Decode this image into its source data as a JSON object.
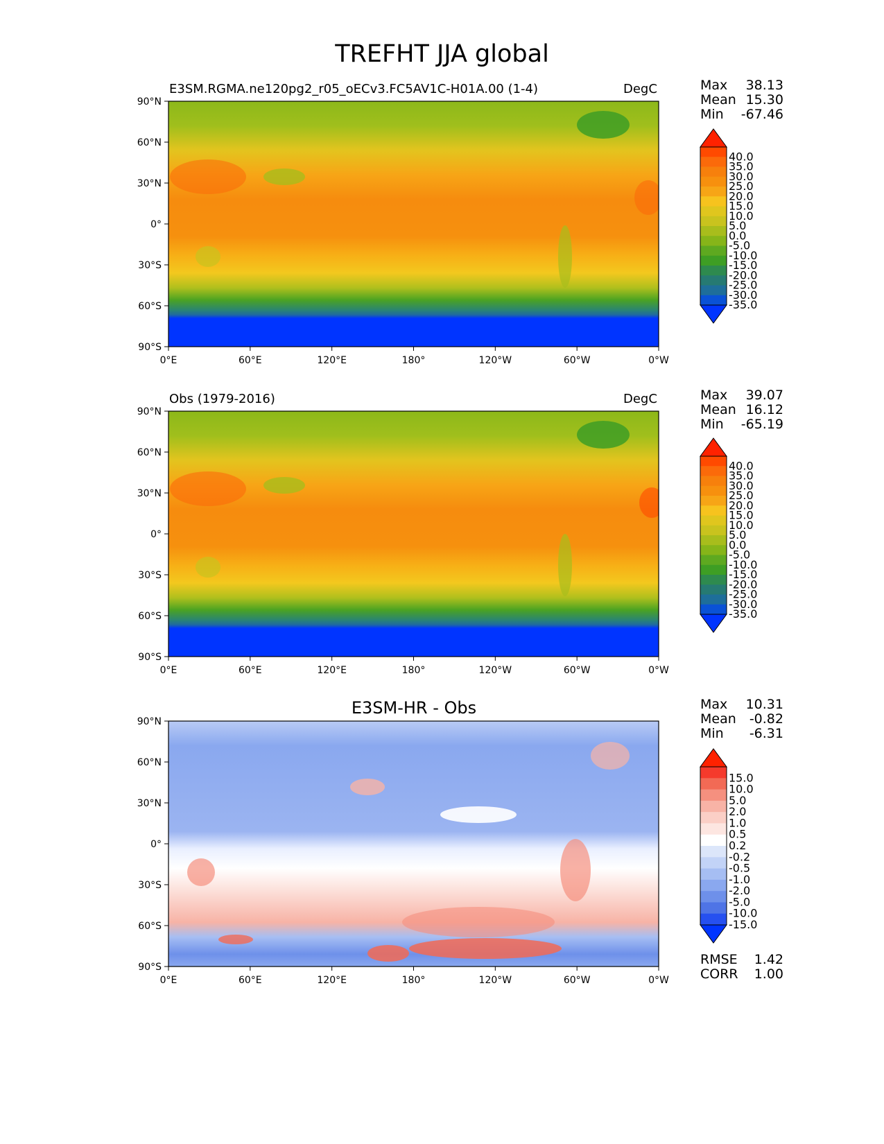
{
  "title": "TREFHT JJA global",
  "lat_ticks": [
    "90°N",
    "60°N",
    "30°N",
    "0°",
    "30°S",
    "60°S",
    "90°S"
  ],
  "lon_ticks": [
    "0°E",
    "60°E",
    "120°E",
    "180°",
    "120°W",
    "60°W",
    "0°W"
  ],
  "panels": [
    {
      "id": "model",
      "title_left": "E3SM.RGMA.ne120pg2_r05_oECv3.FC5AV1C-H01A.00 (1-4)",
      "title_right": "DegC",
      "title_center": "",
      "stats": {
        "max_label": "Max",
        "max": "38.13",
        "mean_label": "Mean",
        "mean": "15.30",
        "min_label": "Min",
        "min": "-67.46"
      },
      "colorbar_labels": [
        "40.0",
        "35.0",
        "30.0",
        "25.0",
        "20.0",
        "15.0",
        "10.0",
        "5.0",
        "0.0",
        "-5.0",
        "-10.0",
        "-15.0",
        "-20.0",
        "-25.0",
        "-30.0",
        "-35.0"
      ],
      "colorbar_colors": [
        "#ff2200",
        "#ff4a00",
        "#fb6a0a",
        "#f7800c",
        "#f7900e",
        "#f7a516",
        "#f7c31e",
        "#e0c61e",
        "#c9c31e",
        "#a8bd1c",
        "#86b519",
        "#5ea920",
        "#3e9e24",
        "#2e8a4e",
        "#267a72",
        "#1e6e9a",
        "#0a52d6",
        "#0034ff"
      ]
    },
    {
      "id": "obs",
      "title_left": "Obs (1979-2016)",
      "title_right": "DegC",
      "title_center": "",
      "stats": {
        "max_label": "Max",
        "max": "39.07",
        "mean_label": "Mean",
        "mean": "16.12",
        "min_label": "Min",
        "min": "-65.19"
      },
      "colorbar_labels": [
        "40.0",
        "35.0",
        "30.0",
        "25.0",
        "20.0",
        "15.0",
        "10.0",
        "5.0",
        "0.0",
        "-5.0",
        "-10.0",
        "-15.0",
        "-20.0",
        "-25.0",
        "-30.0",
        "-35.0"
      ],
      "colorbar_colors": [
        "#ff2200",
        "#ff4a00",
        "#fb6a0a",
        "#f7800c",
        "#f7900e",
        "#f7a516",
        "#f7c31e",
        "#e0c61e",
        "#c9c31e",
        "#a8bd1c",
        "#86b519",
        "#5ea920",
        "#3e9e24",
        "#2e8a4e",
        "#267a72",
        "#1e6e9a",
        "#0a52d6",
        "#0034ff"
      ]
    },
    {
      "id": "diff",
      "title_left": "",
      "title_right": "",
      "title_center": "E3SM-HR - Obs",
      "stats": {
        "max_label": "Max",
        "max": "10.31",
        "mean_label": "Mean",
        "mean": "-0.82",
        "min_label": "Min",
        "min": "-6.31"
      },
      "colorbar_labels": [
        "15.0",
        "10.0",
        "5.0",
        "2.0",
        "1.0",
        "0.5",
        "0.2",
        "-0.2",
        "-0.5",
        "-1.0",
        "-2.0",
        "-5.0",
        "-10.0",
        "-15.0"
      ],
      "colorbar_colors": [
        "#ff2200",
        "#f53a2c",
        "#f26a55",
        "#f5907f",
        "#f8b3a6",
        "#fbcfc6",
        "#fde6e1",
        "#ffffff",
        "#dce6fa",
        "#c2d3f7",
        "#a6bef3",
        "#8aa8ef",
        "#6e90ea",
        "#4f74e6",
        "#2650f0",
        "#0034ff"
      ],
      "rmse_label": "RMSE",
      "rmse": "1.42",
      "corr_label": "CORR",
      "corr": "1.00"
    }
  ]
}
